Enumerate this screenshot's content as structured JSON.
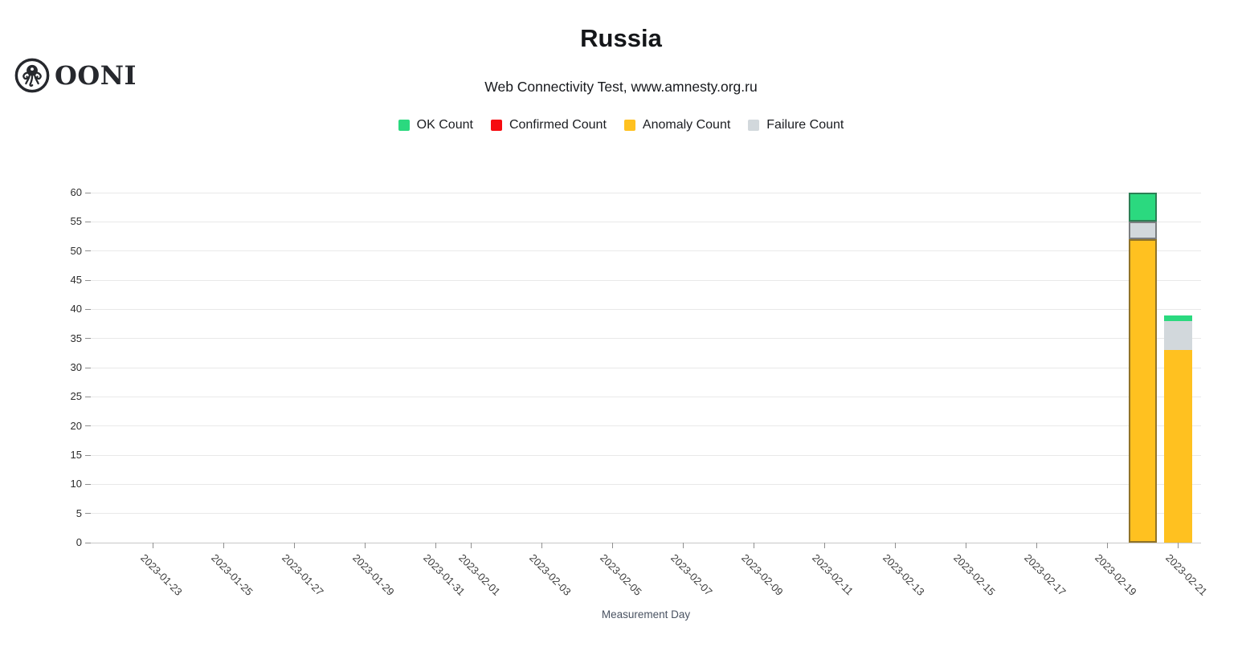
{
  "header": {
    "logo_text": "OONI",
    "title": "Russia",
    "subtitle": "Web Connectivity Test, www.amnesty.org.ru"
  },
  "chart_data": {
    "type": "bar",
    "stacked": true,
    "title": "Russia",
    "subtitle": "Web Connectivity Test, www.amnesty.org.ru",
    "xlabel": "Measurement Day",
    "ylabel": "",
    "ylim": [
      0,
      60
    ],
    "ytick_step": 5,
    "grid": "horizontal",
    "legend_position": "top-center",
    "x_start": "2023-01-22",
    "x_end": "2023-02-21",
    "x_tick_labels": [
      "2023-01-23",
      "2023-01-25",
      "2023-01-27",
      "2023-01-29",
      "2023-01-31",
      "2023-02-01",
      "2023-02-03",
      "2023-02-05",
      "2023-02-07",
      "2023-02-09",
      "2023-02-11",
      "2023-02-13",
      "2023-02-15",
      "2023-02-17",
      "2023-02-19",
      "2023-02-21"
    ],
    "series": [
      {
        "key": "ok",
        "name": "OK Count",
        "color": "#2bd97f"
      },
      {
        "key": "confirmed",
        "name": "Confirmed Count",
        "color": "#f60b10"
      },
      {
        "key": "anomaly",
        "name": "Anomaly Count",
        "color": "#ffc120"
      },
      {
        "key": "failure",
        "name": "Failure Count",
        "color": "#d2d8dc"
      }
    ],
    "series_order_bottom_to_top": [
      "anomaly",
      "confirmed",
      "failure",
      "ok"
    ],
    "bars": [
      {
        "date": "2023-02-20",
        "ok": 5,
        "confirmed": 0,
        "anomaly": 52,
        "failure": 3,
        "total": 60,
        "highlighted": true
      },
      {
        "date": "2023-02-21",
        "ok": 1,
        "confirmed": 0,
        "anomaly": 33,
        "failure": 5,
        "total": 39,
        "highlighted": false
      }
    ]
  }
}
